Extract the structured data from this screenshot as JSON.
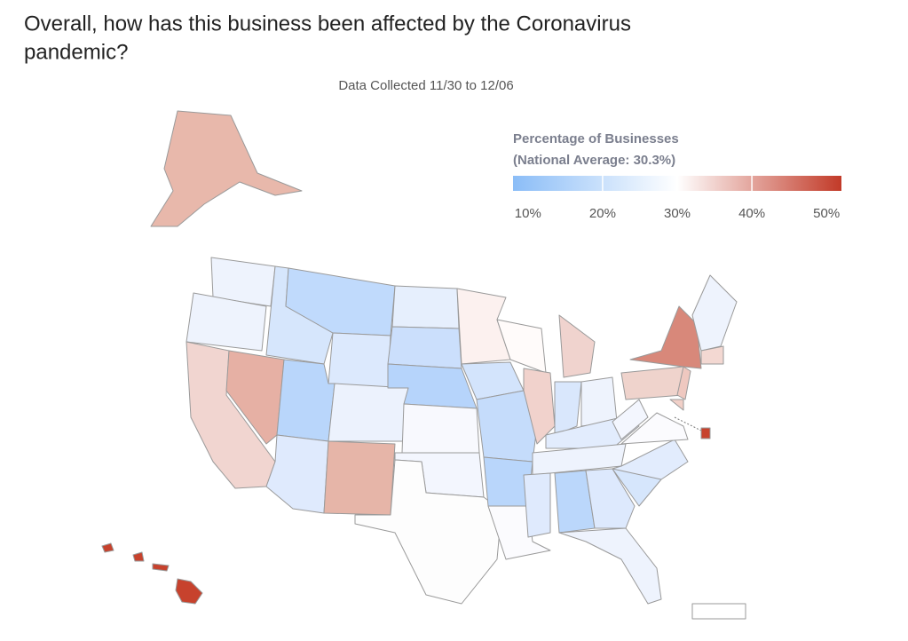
{
  "chart_data": {
    "type": "choropleth",
    "title_lines": [
      "Overall, how has this business been affected by the Coronavirus",
      "pandemic?"
    ],
    "subtitle": "Data Collected 11/30 to 12/06",
    "legend_title_lines": [
      "Percentage of Businesses",
      "(National Average: 30.3%)"
    ],
    "clim": [
      8,
      52
    ],
    "colors": [
      "#8bbdf7",
      "#ffffff",
      "#c23a28"
    ],
    "cticks": [
      {
        "value": 10,
        "label": "10%"
      },
      {
        "value": 20,
        "label": "20%"
      },
      {
        "value": 30,
        "label": "30%"
      },
      {
        "value": 40,
        "label": "40%"
      },
      {
        "value": 50,
        "label": "50%"
      }
    ]
  }
}
